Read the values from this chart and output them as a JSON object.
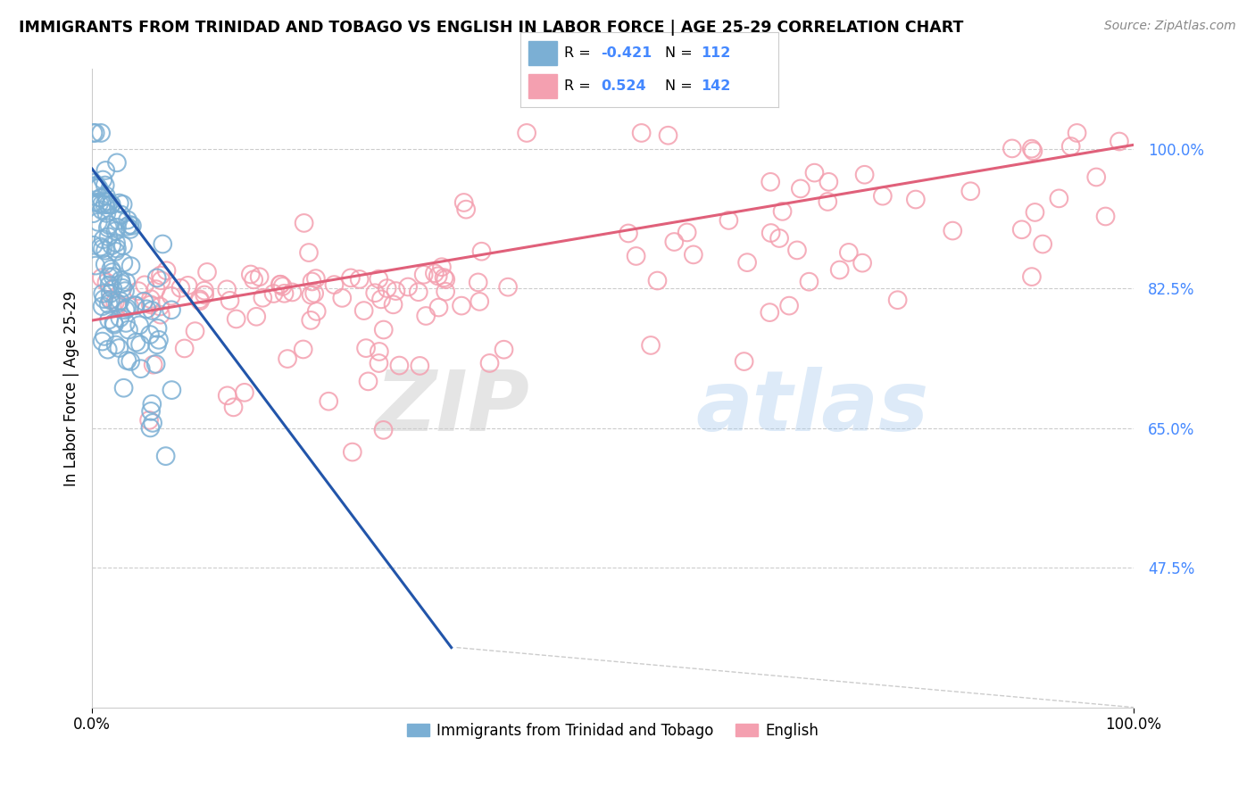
{
  "title": "IMMIGRANTS FROM TRINIDAD AND TOBAGO VS ENGLISH IN LABOR FORCE | AGE 25-29 CORRELATION CHART",
  "source": "Source: ZipAtlas.com",
  "ylabel": "In Labor Force | Age 25-29",
  "legend_r_blue": "-0.421",
  "legend_n_blue": "112",
  "legend_r_pink": "0.524",
  "legend_n_pink": "142",
  "legend_label_blue": "Immigrants from Trinidad and Tobago",
  "legend_label_pink": "English",
  "blue_color": "#7BAFD4",
  "pink_color": "#F4A0B0",
  "blue_line_color": "#2255AA",
  "pink_line_color": "#E0607A",
  "watermark_zip": "ZIP",
  "watermark_atlas": "atlas",
  "ytick_color": "#4488FF",
  "xlim": [
    0.0,
    1.0
  ],
  "ylim": [
    0.3,
    1.1
  ],
  "yticks": [
    0.475,
    0.65,
    0.825,
    1.0
  ],
  "ytick_labels": [
    "47.5%",
    "65.0%",
    "82.5%",
    "100.0%"
  ]
}
